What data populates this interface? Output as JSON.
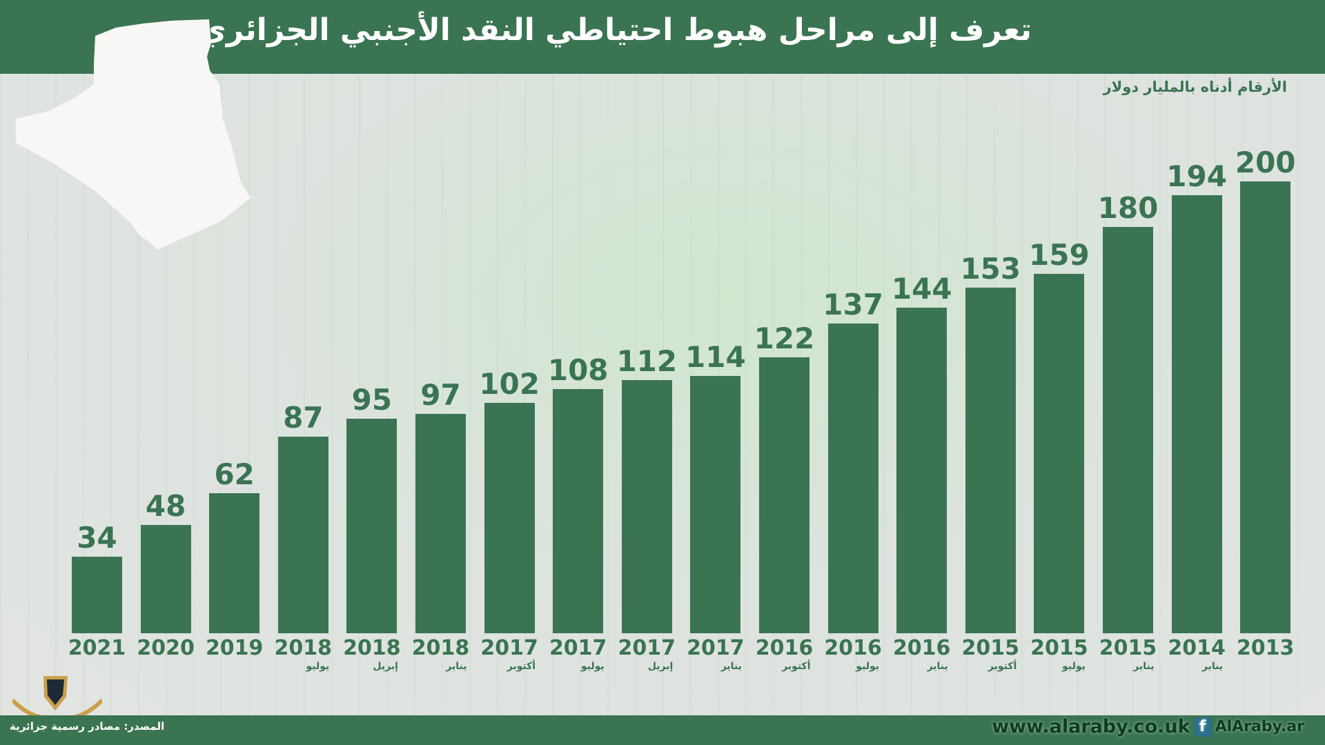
{
  "header": {
    "title": "تعرف إلى مراحل هبوط احتياطي النقد الأجنبي الجزائري"
  },
  "subtitle": "الأرقام أدناه بالمليار دولار",
  "footer": {
    "source": "المصدر: مصادر رسمية جزائرية",
    "website": "www.alaraby.co.uk",
    "facebook": "AlAraby.ar",
    "facebook_icon": "facebook-icon"
  },
  "colors": {
    "primary": "#3a7453",
    "background": "#e0e4e0"
  },
  "chart_data": {
    "type": "bar",
    "title": "تعرف إلى مراحل هبوط احتياطي النقد الأجنبي الجزائري",
    "ylabel": "",
    "unit_note": "الأرقام أدناه بالمليار دولار",
    "ylim": [
      0,
      200
    ],
    "grid": false,
    "categories": [
      {
        "year": "2021",
        "month": ""
      },
      {
        "year": "2020",
        "month": ""
      },
      {
        "year": "2019",
        "month": ""
      },
      {
        "year": "2018",
        "month": "يوليو"
      },
      {
        "year": "2018",
        "month": "إبريل"
      },
      {
        "year": "2018",
        "month": "يناير"
      },
      {
        "year": "2017",
        "month": "أكتوبر"
      },
      {
        "year": "2017",
        "month": "يوليو"
      },
      {
        "year": "2017",
        "month": "إبريل"
      },
      {
        "year": "2017",
        "month": "يناير"
      },
      {
        "year": "2016",
        "month": "أكتوبر"
      },
      {
        "year": "2016",
        "month": "يوليو"
      },
      {
        "year": "2016",
        "month": "يناير"
      },
      {
        "year": "2015",
        "month": "أكتوبر"
      },
      {
        "year": "2015",
        "month": "يوليو"
      },
      {
        "year": "2015",
        "month": "يناير"
      },
      {
        "year": "2014",
        "month": "يناير"
      },
      {
        "year": "2013",
        "month": ""
      }
    ],
    "values": [
      34,
      48,
      62,
      87,
      95,
      97,
      102,
      108,
      112,
      114,
      122,
      137,
      144,
      153,
      159,
      180,
      194,
      200
    ]
  }
}
